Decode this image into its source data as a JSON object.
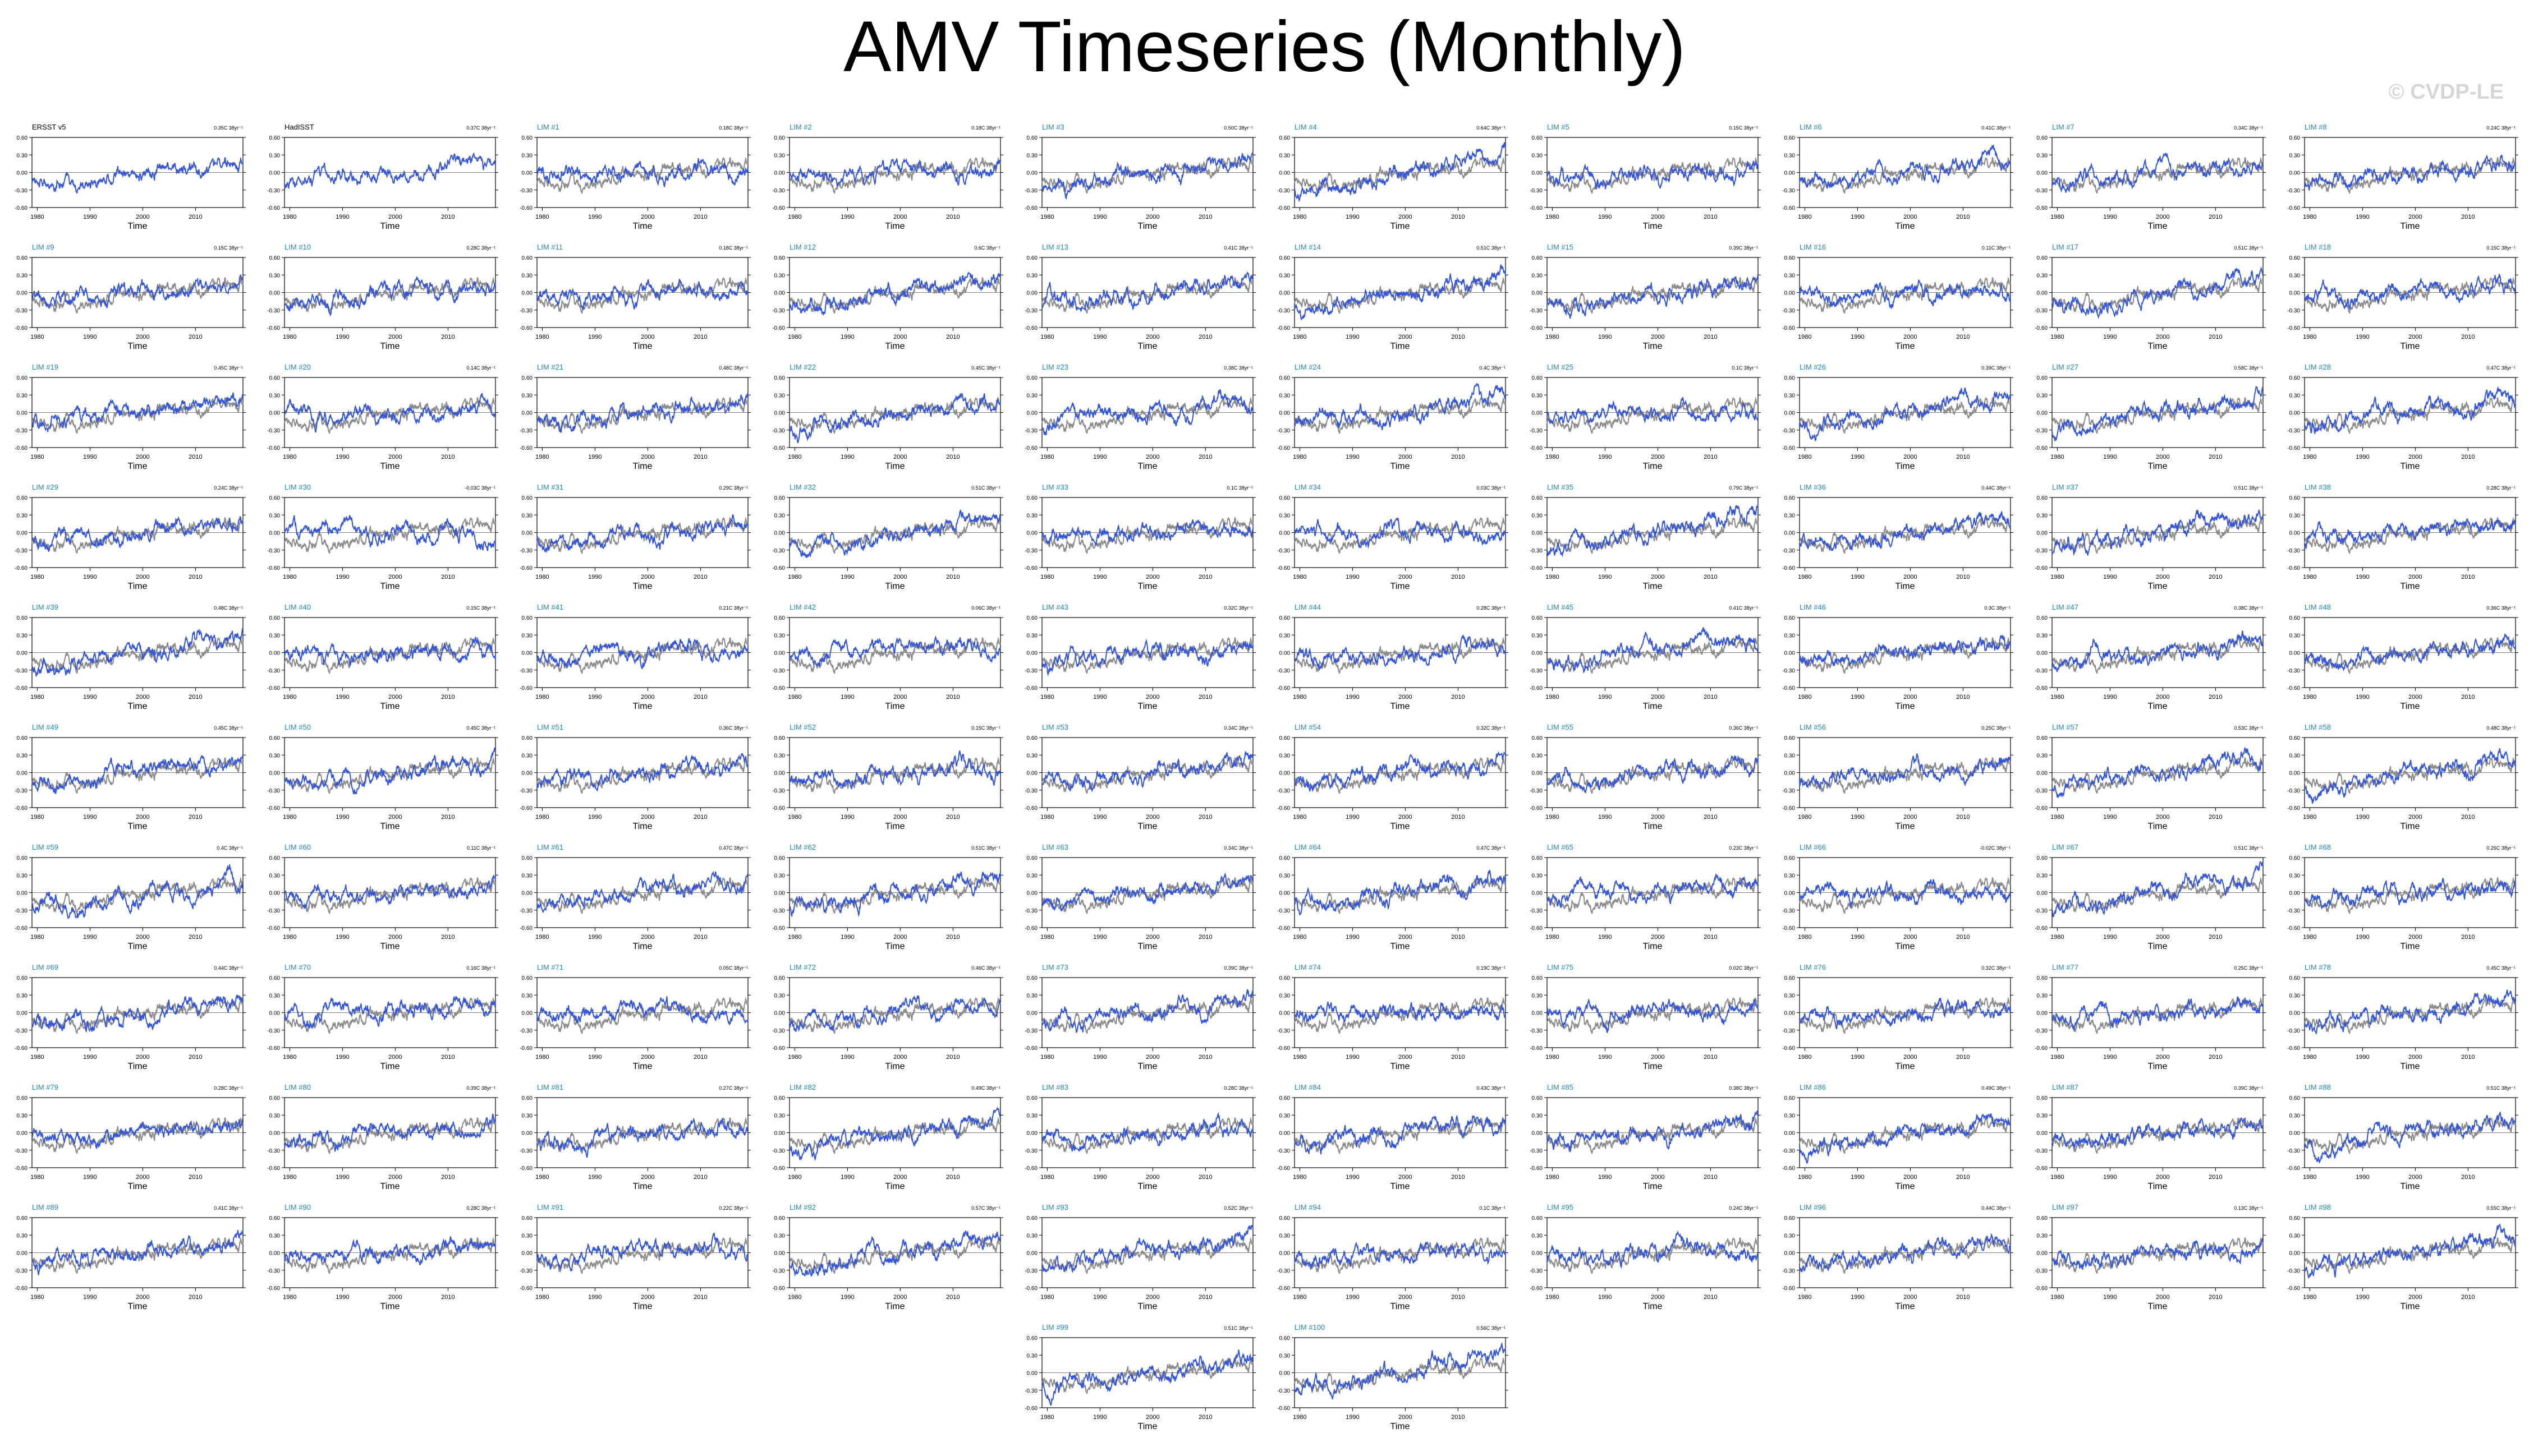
{
  "page": {
    "title": "AMV Timeseries (Monthly)",
    "watermark": "© CVDP-LE"
  },
  "colors": {
    "member_line": "#3355dd",
    "observation_line": "#8a8a8a",
    "member_label": "#2288bb",
    "obs_label": "#000000",
    "axis": "#000000"
  },
  "chart_data": {
    "type": "line",
    "panel_count": 102,
    "xlabel": "Time",
    "x_ticks": [
      1980,
      1990,
      2000,
      2010
    ],
    "xlim": [
      1979,
      2019
    ],
    "ylim": [
      -0.6,
      0.6
    ],
    "y_ticks": [
      "0.60",
      "0.30",
      "0.00",
      "-0.30",
      "-0.60"
    ],
    "panels": [
      {
        "label": "ERSST v5",
        "trend": "0.35C 38yr⁻¹",
        "kind": "obs"
      },
      {
        "label": "HadISST",
        "trend": "0.37C 38yr⁻¹",
        "kind": "obs"
      },
      {
        "label": "LIM #1",
        "trend": "0.18C 38yr⁻¹",
        "kind": "member"
      },
      {
        "label": "LIM #2",
        "trend": "0.18C 38yr⁻¹",
        "kind": "member"
      },
      {
        "label": "LIM #3",
        "trend": "0.50C 38yr⁻¹",
        "kind": "member"
      },
      {
        "label": "LIM #4",
        "trend": "0.64C 38yr⁻¹",
        "kind": "member"
      },
      {
        "label": "LIM #5",
        "trend": "0.15C 38yr⁻¹",
        "kind": "member"
      },
      {
        "label": "LIM #6",
        "trend": "0.41C 38yr⁻¹",
        "kind": "member"
      },
      {
        "label": "LIM #7",
        "trend": "0.34C 38yr⁻¹",
        "kind": "member"
      },
      {
        "label": "LIM #8",
        "trend": "0.24C 38yr⁻¹",
        "kind": "member"
      },
      {
        "label": "LIM #9",
        "trend": "0.15C 38yr⁻¹",
        "kind": "member"
      },
      {
        "label": "LIM #10",
        "trend": "0.28C 38yr⁻¹",
        "kind": "member"
      },
      {
        "label": "LIM #11",
        "trend": "0.18C 38yr⁻¹",
        "kind": "member"
      },
      {
        "label": "LIM #12",
        "trend": "0.6C 38yr⁻¹",
        "kind": "member"
      },
      {
        "label": "LIM #13",
        "trend": "0.41C 38yr⁻¹",
        "kind": "member"
      },
      {
        "label": "LIM #14",
        "trend": "0.51C 38yr⁻¹",
        "kind": "member"
      },
      {
        "label": "LIM #15",
        "trend": "0.39C 38yr⁻¹",
        "kind": "member"
      },
      {
        "label": "LIM #16",
        "trend": "0.11C 38yr⁻¹",
        "kind": "member"
      },
      {
        "label": "LIM #17",
        "trend": "0.51C 38yr⁻¹",
        "kind": "member"
      },
      {
        "label": "LIM #18",
        "trend": "0.15C 38yr⁻¹",
        "kind": "member"
      },
      {
        "label": "LIM #19",
        "trend": "0.45C 38yr⁻¹",
        "kind": "member"
      },
      {
        "label": "LIM #20",
        "trend": "0.14C 38yr⁻¹",
        "kind": "member"
      },
      {
        "label": "LIM #21",
        "trend": "0.48C 38yr⁻¹",
        "kind": "member"
      },
      {
        "label": "LIM #22",
        "trend": "0.45C 38yr⁻¹",
        "kind": "member"
      },
      {
        "label": "LIM #23",
        "trend": "0.38C 38yr⁻¹",
        "kind": "member"
      },
      {
        "label": "LIM #24",
        "trend": "0.4C 38yr⁻¹",
        "kind": "member"
      },
      {
        "label": "LIM #25",
        "trend": "0.1C 38yr⁻¹",
        "kind": "member"
      },
      {
        "label": "LIM #26",
        "trend": "0.39C 38yr⁻¹",
        "kind": "member"
      },
      {
        "label": "LIM #27",
        "trend": "0.58C 38yr⁻¹",
        "kind": "member"
      },
      {
        "label": "LIM #28",
        "trend": "0.47C 38yr⁻¹",
        "kind": "member"
      },
      {
        "label": "LIM #29",
        "trend": "0.24C 38yr⁻¹",
        "kind": "member"
      },
      {
        "label": "LIM #30",
        "trend": "-0.03C 38yr⁻¹",
        "kind": "member"
      },
      {
        "label": "LIM #31",
        "trend": "0.29C 38yr⁻¹",
        "kind": "member"
      },
      {
        "label": "LIM #32",
        "trend": "0.51C 38yr⁻¹",
        "kind": "member"
      },
      {
        "label": "LIM #33",
        "trend": "0.1C 38yr⁻¹",
        "kind": "member"
      },
      {
        "label": "LIM #34",
        "trend": "0.03C 38yr⁻¹",
        "kind": "member"
      },
      {
        "label": "LIM #35",
        "trend": "0.79C 38yr⁻¹",
        "kind": "member"
      },
      {
        "label": "LIM #36",
        "trend": "0.44C 38yr⁻¹",
        "kind": "member"
      },
      {
        "label": "LIM #37",
        "trend": "0.51C 38yr⁻¹",
        "kind": "member"
      },
      {
        "label": "LIM #38",
        "trend": "0.28C 38yr⁻¹",
        "kind": "member"
      },
      {
        "label": "LIM #39",
        "trend": "0.48C 38yr⁻¹",
        "kind": "member"
      },
      {
        "label": "LIM #40",
        "trend": "0.15C 38yr⁻¹",
        "kind": "member"
      },
      {
        "label": "LIM #41",
        "trend": "0.21C 38yr⁻¹",
        "kind": "member"
      },
      {
        "label": "LIM #42",
        "trend": "0.06C 38yr⁻¹",
        "kind": "member"
      },
      {
        "label": "LIM #43",
        "trend": "0.32C 38yr⁻¹",
        "kind": "member"
      },
      {
        "label": "LIM #44",
        "trend": "0.28C 38yr⁻¹",
        "kind": "member"
      },
      {
        "label": "LIM #45",
        "trend": "0.41C 38yr⁻¹",
        "kind": "member"
      },
      {
        "label": "LIM #46",
        "trend": "0.3C 38yr⁻¹",
        "kind": "member"
      },
      {
        "label": "LIM #47",
        "trend": "0.38C 38yr⁻¹",
        "kind": "member"
      },
      {
        "label": "LIM #48",
        "trend": "0.36C 38yr⁻¹",
        "kind": "member"
      },
      {
        "label": "LIM #49",
        "trend": "0.45C 38yr⁻¹",
        "kind": "member"
      },
      {
        "label": "LIM #50",
        "trend": "0.45C 38yr⁻¹",
        "kind": "member"
      },
      {
        "label": "LIM #51",
        "trend": "0.36C 38yr⁻¹",
        "kind": "member"
      },
      {
        "label": "LIM #52",
        "trend": "0.15C 38yr⁻¹",
        "kind": "member"
      },
      {
        "label": "LIM #53",
        "trend": "0.34C 38yr⁻¹",
        "kind": "member"
      },
      {
        "label": "LIM #54",
        "trend": "0.32C 38yr⁻¹",
        "kind": "member"
      },
      {
        "label": "LIM #55",
        "trend": "0.36C 38yr⁻¹",
        "kind": "member"
      },
      {
        "label": "LIM #56",
        "trend": "0.25C 38yr⁻¹",
        "kind": "member"
      },
      {
        "label": "LIM #57",
        "trend": "0.53C 38yr⁻¹",
        "kind": "member"
      },
      {
        "label": "LIM #58",
        "trend": "0.48C 38yr⁻¹",
        "kind": "member"
      },
      {
        "label": "LIM #59",
        "trend": "0.4C 38yr⁻¹",
        "kind": "member"
      },
      {
        "label": "LIM #60",
        "trend": "0.11C 38yr⁻¹",
        "kind": "member"
      },
      {
        "label": "LIM #61",
        "trend": "0.47C 38yr⁻¹",
        "kind": "member"
      },
      {
        "label": "LIM #62",
        "trend": "0.51C 38yr⁻¹",
        "kind": "member"
      },
      {
        "label": "LIM #63",
        "trend": "0.34C 38yr⁻¹",
        "kind": "member"
      },
      {
        "label": "LIM #64",
        "trend": "0.47C 38yr⁻¹",
        "kind": "member"
      },
      {
        "label": "LIM #65",
        "trend": "0.23C 38yr⁻¹",
        "kind": "member"
      },
      {
        "label": "LIM #66",
        "trend": "-0.02C 38yr⁻¹",
        "kind": "member"
      },
      {
        "label": "LIM #67",
        "trend": "0.51C 38yr⁻¹",
        "kind": "member"
      },
      {
        "label": "LIM #68",
        "trend": "0.26C 38yr⁻¹",
        "kind": "member"
      },
      {
        "label": "LIM #69",
        "trend": "0.44C 38yr⁻¹",
        "kind": "member"
      },
      {
        "label": "LIM #70",
        "trend": "0.16C 38yr⁻¹",
        "kind": "member"
      },
      {
        "label": "LIM #71",
        "trend": "0.05C 38yr⁻¹",
        "kind": "member"
      },
      {
        "label": "LIM #72",
        "trend": "0.46C 38yr⁻¹",
        "kind": "member"
      },
      {
        "label": "LIM #73",
        "trend": "0.39C 38yr⁻¹",
        "kind": "member"
      },
      {
        "label": "LIM #74",
        "trend": "0.19C 38yr⁻¹",
        "kind": "member"
      },
      {
        "label": "LIM #75",
        "trend": "0.02C 38yr⁻¹",
        "kind": "member"
      },
      {
        "label": "LIM #76",
        "trend": "0.32C 38yr⁻¹",
        "kind": "member"
      },
      {
        "label": "LIM #77",
        "trend": "0.25C 38yr⁻¹",
        "kind": "member"
      },
      {
        "label": "LIM #78",
        "trend": "0.45C 38yr⁻¹",
        "kind": "member"
      },
      {
        "label": "LIM #79",
        "trend": "0.28C 38yr⁻¹",
        "kind": "member"
      },
      {
        "label": "LIM #80",
        "trend": "0.39C 38yr⁻¹",
        "kind": "member"
      },
      {
        "label": "LIM #81",
        "trend": "0.27C 38yr⁻¹",
        "kind": "member"
      },
      {
        "label": "LIM #82",
        "trend": "0.49C 38yr⁻¹",
        "kind": "member"
      },
      {
        "label": "LIM #83",
        "trend": "0.28C 38yr⁻¹",
        "kind": "member"
      },
      {
        "label": "LIM #84",
        "trend": "0.43C 38yr⁻¹",
        "kind": "member"
      },
      {
        "label": "LIM #85",
        "trend": "0.38C 38yr⁻¹",
        "kind": "member"
      },
      {
        "label": "LIM #86",
        "trend": "0.49C 38yr⁻¹",
        "kind": "member"
      },
      {
        "label": "LIM #87",
        "trend": "0.39C 38yr⁻¹",
        "kind": "member"
      },
      {
        "label": "LIM #88",
        "trend": "0.51C 38yr⁻¹",
        "kind": "member"
      },
      {
        "label": "LIM #89",
        "trend": "0.41C 38yr⁻¹",
        "kind": "member"
      },
      {
        "label": "LIM #90",
        "trend": "0.28C 38yr⁻¹",
        "kind": "member"
      },
      {
        "label": "LIM #91",
        "trend": "0.22C 38yr⁻¹",
        "kind": "member"
      },
      {
        "label": "LIM #92",
        "trend": "0.57C 38yr⁻¹",
        "kind": "member"
      },
      {
        "label": "LIM #93",
        "trend": "0.52C 38yr⁻¹",
        "kind": "member"
      },
      {
        "label": "LIM #94",
        "trend": "0.1C 38yr⁻¹",
        "kind": "member"
      },
      {
        "label": "LIM #95",
        "trend": "0.24C 38yr⁻¹",
        "kind": "member"
      },
      {
        "label": "LIM #96",
        "trend": "0.44C 38yr⁻¹",
        "kind": "member"
      },
      {
        "label": "LIM #97",
        "trend": "0.13C 38yr⁻¹",
        "kind": "member"
      },
      {
        "label": "LIM #98",
        "trend": "0.55C 38yr⁻¹",
        "kind": "member"
      },
      {
        "label": "LIM #99",
        "trend": "0.51C 38yr⁻¹",
        "kind": "member"
      },
      {
        "label": "LIM #100",
        "trend": "0.56C 38yr⁻¹",
        "kind": "member"
      }
    ]
  }
}
